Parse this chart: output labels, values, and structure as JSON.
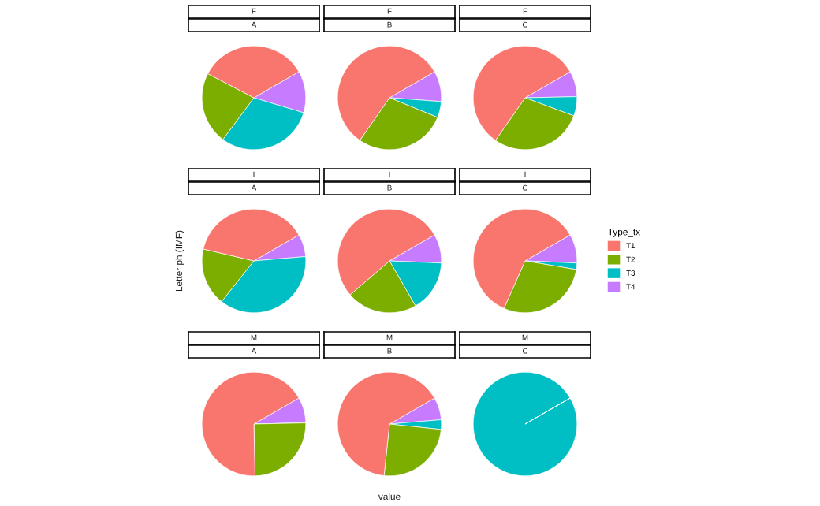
{
  "chart_data": [
    {
      "type": "pie",
      "title": "F",
      "subtitle": "A",
      "legend_title": "Type_tx",
      "legend": "right",
      "categories": [
        "T1",
        "T2",
        "T3",
        "T4"
      ],
      "values": [
        34,
        22.5,
        30.5,
        13
      ],
      "colors": [
        "#f8766d",
        "#7cae00",
        "#00bfc4",
        "#c77cff"
      ]
    },
    {
      "type": "pie",
      "title": "F",
      "subtitle": "B",
      "categories": [
        null,
        null,
        null,
        null
      ],
      "values": [
        57,
        28.5,
        5,
        9.5
      ],
      "colors": [
        "#f8766d",
        "#7cae00",
        "#00bfc4",
        "#c77cff"
      ]
    },
    {
      "type": "pie",
      "title": "F",
      "subtitle": "C",
      "categories": [
        null,
        null,
        null,
        null
      ],
      "values": [
        57,
        29,
        6,
        8
      ],
      "colors": [
        "#f8766d",
        "#7cae00",
        "#00bfc4",
        "#c77cff"
      ]
    },
    {
      "type": "pie",
      "title": "I",
      "subtitle": "A",
      "ylabel": "Letter ph (IMF)",
      "categories": [
        null,
        null,
        null,
        null
      ],
      "values": [
        38,
        18,
        37,
        7
      ],
      "colors": [
        "#f8766d",
        "#7cae00",
        "#00bfc4",
        "#c77cff"
      ]
    },
    {
      "type": "pie",
      "title": "I",
      "subtitle": "B",
      "categories": [
        null,
        null,
        null,
        null
      ],
      "values": [
        53,
        22,
        16,
        9
      ],
      "colors": [
        "#f8766d",
        "#7cae00",
        "#00bfc4",
        "#c77cff"
      ]
    },
    {
      "type": "pie",
      "title": "I",
      "subtitle": "C",
      "categories": [
        null,
        null,
        null,
        null
      ],
      "values": [
        60,
        29,
        2,
        9
      ],
      "colors": [
        "#f8766d",
        "#7cae00",
        "#00bfc4",
        "#c77cff"
      ]
    },
    {
      "type": "pie",
      "title": "M",
      "subtitle": "A",
      "categories": [
        null,
        null,
        null,
        null
      ],
      "values": [
        67,
        25,
        0,
        8
      ],
      "colors": [
        "#f8766d",
        "#7cae00",
        "#00bfc4",
        "#c77cff"
      ]
    },
    {
      "type": "pie",
      "title": "M",
      "subtitle": "B",
      "xlabel": "value",
      "categories": [
        null,
        null,
        null,
        null
      ],
      "values": [
        65,
        25,
        3,
        7
      ],
      "colors": [
        "#f8766d",
        "#7cae00",
        "#00bfc4",
        "#c77cff"
      ]
    },
    {
      "type": "pie",
      "title": "M",
      "subtitle": "C",
      "categories": [
        null,
        null,
        null,
        null
      ],
      "values": [
        0,
        0,
        100,
        0
      ],
      "colors": [
        "#f8766d",
        "#7cae00",
        "#00bfc4",
        "#c77cff"
      ]
    }
  ]
}
